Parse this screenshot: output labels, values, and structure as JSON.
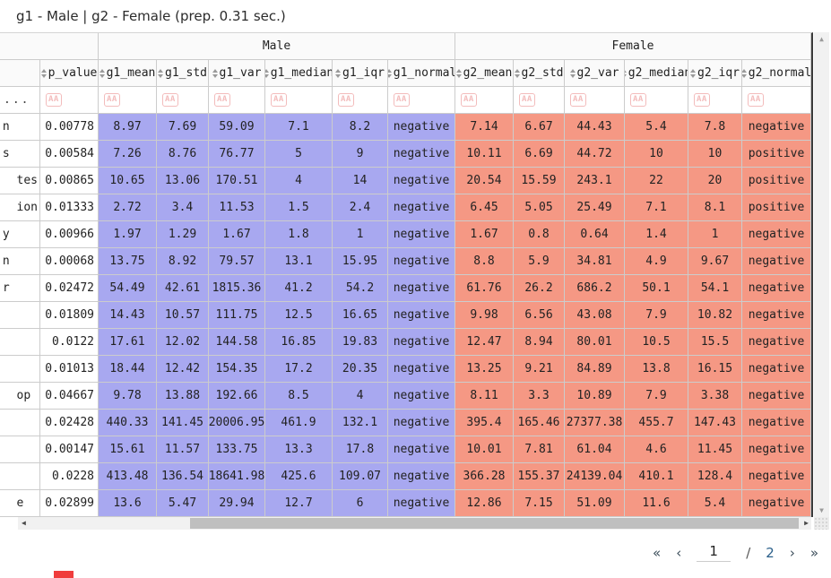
{
  "title": "g1 - Male | g2 - Female (prep. 0.31 sec.)",
  "colors": {
    "g1_male": "#a8a8f0",
    "g2_female": "#f59884",
    "filter_badge": "#f3bcbc",
    "table_border": "#3b3b3b"
  },
  "table": {
    "group_headers": [
      {
        "label": "",
        "span": 2
      },
      {
        "label": "Male",
        "span": 6
      },
      {
        "label": "Female",
        "span": 6
      }
    ],
    "columns": [
      "",
      "p_value",
      "g1_mean",
      "g1_std",
      "g1_var",
      "g1_median",
      "g1_iqr",
      "g1_normal",
      "g2_mean",
      "g2_std",
      "g2_var",
      "g2_median",
      "g2_iqr",
      "g2_normal"
    ],
    "filter_row": {
      "first_cell": "...",
      "filter_icon": "AA"
    },
    "rows": [
      {
        "name": "n    ",
        "p_value": "0.00778",
        "g1": [
          "8.97",
          "7.69",
          "59.09",
          "7.1",
          "8.2",
          "negative"
        ],
        "g2": [
          "7.14",
          "6.67",
          "44.43",
          "5.4",
          "7.8",
          "negative"
        ]
      },
      {
        "name": "s    ",
        "p_value": "0.00584",
        "g1": [
          "7.26",
          "8.76",
          "76.77",
          "5",
          "9",
          "negative"
        ],
        "g2": [
          "10.11",
          "6.69",
          "44.72",
          "10",
          "10",
          "positive"
        ]
      },
      {
        "name": "tes",
        "p_value": "0.00865",
        "g1": [
          "10.65",
          "13.06",
          "170.51",
          "4",
          "14",
          "negative"
        ],
        "g2": [
          "20.54",
          "15.59",
          "243.1",
          "22",
          "20",
          "positive"
        ]
      },
      {
        "name": "ion",
        "p_value": "0.01333",
        "g1": [
          "2.72",
          "3.4",
          "11.53",
          "1.5",
          "2.4",
          "negative"
        ],
        "g2": [
          "6.45",
          "5.05",
          "25.49",
          "7.1",
          "8.1",
          "positive"
        ]
      },
      {
        "name": "y    ",
        "p_value": "0.00966",
        "g1": [
          "1.97",
          "1.29",
          "1.67",
          "1.8",
          "1",
          "negative"
        ],
        "g2": [
          "1.67",
          "0.8",
          "0.64",
          "1.4",
          "1",
          "negative"
        ]
      },
      {
        "name": "n    ",
        "p_value": "0.00068",
        "g1": [
          "13.75",
          "8.92",
          "79.57",
          "13.1",
          "15.95",
          "negative"
        ],
        "g2": [
          "8.8",
          "5.9",
          "34.81",
          "4.9",
          "9.67",
          "negative"
        ]
      },
      {
        "name": "r    ",
        "p_value": "0.02472",
        "g1": [
          "54.49",
          "42.61",
          "1815.36",
          "41.2",
          "54.2",
          "negative"
        ],
        "g2": [
          "61.76",
          "26.2",
          "686.2",
          "50.1",
          "54.1",
          "negative"
        ]
      },
      {
        "name": "",
        "p_value": "0.01809",
        "g1": [
          "14.43",
          "10.57",
          "111.75",
          "12.5",
          "16.65",
          "negative"
        ],
        "g2": [
          "9.98",
          "6.56",
          "43.08",
          "7.9",
          "10.82",
          "negative"
        ]
      },
      {
        "name": "",
        "p_value": "0.0122",
        "g1": [
          "17.61",
          "12.02",
          "144.58",
          "16.85",
          "19.83",
          "negative"
        ],
        "g2": [
          "12.47",
          "8.94",
          "80.01",
          "10.5",
          "15.5",
          "negative"
        ]
      },
      {
        "name": "",
        "p_value": "0.01013",
        "g1": [
          "18.44",
          "12.42",
          "154.35",
          "17.2",
          "20.35",
          "negative"
        ],
        "g2": [
          "13.25",
          "9.21",
          "84.89",
          "13.8",
          "16.15",
          "negative"
        ]
      },
      {
        "name": "op ",
        "p_value": "0.04667",
        "g1": [
          "9.78",
          "13.88",
          "192.66",
          "8.5",
          "4",
          "negative"
        ],
        "g2": [
          "8.11",
          "3.3",
          "10.89",
          "7.9",
          "3.38",
          "negative"
        ]
      },
      {
        "name": "",
        "p_value": "0.02428",
        "g1": [
          "440.33",
          "141.45",
          "20006.95",
          "461.9",
          "132.1",
          "negative"
        ],
        "g2": [
          "395.4",
          "165.46",
          "27377.38",
          "455.7",
          "147.43",
          "negative"
        ]
      },
      {
        "name": "",
        "p_value": "0.00147",
        "g1": [
          "15.61",
          "11.57",
          "133.75",
          "13.3",
          "17.8",
          "negative"
        ],
        "g2": [
          "10.01",
          "7.81",
          "61.04",
          "4.6",
          "11.45",
          "negative"
        ]
      },
      {
        "name": "",
        "p_value": "0.0228",
        "g1": [
          "413.48",
          "136.54",
          "18641.98",
          "425.6",
          "109.07",
          "negative"
        ],
        "g2": [
          "366.28",
          "155.37",
          "24139.04",
          "410.1",
          "128.4",
          "negative"
        ]
      },
      {
        "name": "e  ",
        "p_value": "0.02899",
        "g1": [
          "13.6",
          "5.47",
          "29.94",
          "12.7",
          "6",
          "negative"
        ],
        "g2": [
          "12.86",
          "7.15",
          "51.09",
          "11.6",
          "5.4",
          "negative"
        ]
      }
    ]
  },
  "scrollbars": {
    "h_left_arrow": "◀",
    "h_right_arrow": "▶",
    "v_up_arrow": "▲",
    "v_down_arrow": "▼"
  },
  "pagination": {
    "first": "«",
    "prev": "‹",
    "current_page": "1",
    "separator": "/",
    "total_pages": "2",
    "next": "›",
    "last": "»"
  }
}
